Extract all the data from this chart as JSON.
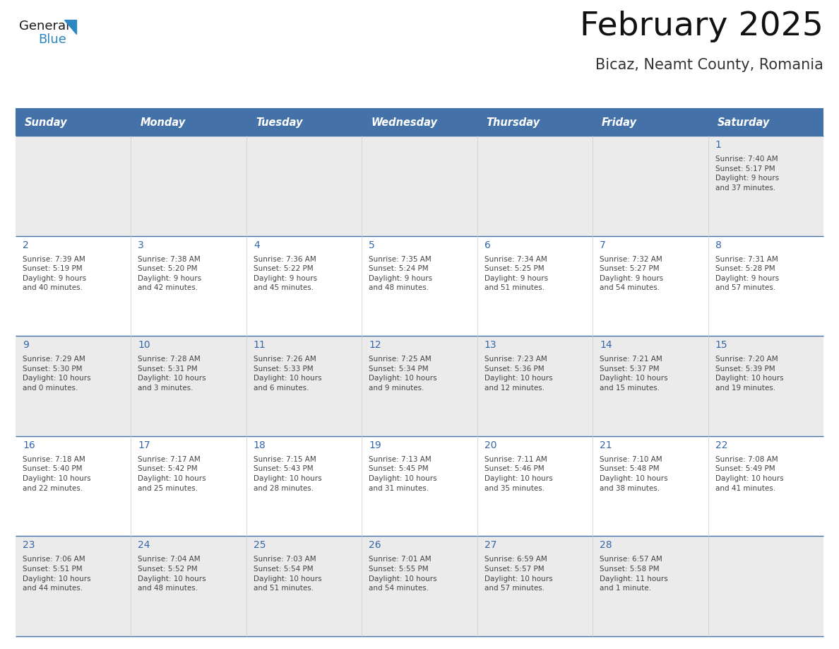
{
  "title": "February 2025",
  "subtitle": "Bicaz, Neamt County, Romania",
  "days_of_week": [
    "Sunday",
    "Monday",
    "Tuesday",
    "Wednesday",
    "Thursday",
    "Friday",
    "Saturday"
  ],
  "header_bg_color": "#4472a8",
  "header_text_color": "#ffffff",
  "cell_bg_even": "#ebebeb",
  "cell_bg_odd": "#ffffff",
  "day_number_color": "#3366aa",
  "info_text_color": "#444444",
  "border_color": "#4472a8",
  "title_color": "#111111",
  "subtitle_color": "#333333",
  "logo_text1_color": "#1a1a1a",
  "logo_blue_color": "#2e86c1",
  "weeks": [
    [
      {
        "day": null,
        "info": ""
      },
      {
        "day": null,
        "info": ""
      },
      {
        "day": null,
        "info": ""
      },
      {
        "day": null,
        "info": ""
      },
      {
        "day": null,
        "info": ""
      },
      {
        "day": null,
        "info": ""
      },
      {
        "day": 1,
        "info": "Sunrise: 7:40 AM\nSunset: 5:17 PM\nDaylight: 9 hours\nand 37 minutes."
      }
    ],
    [
      {
        "day": 2,
        "info": "Sunrise: 7:39 AM\nSunset: 5:19 PM\nDaylight: 9 hours\nand 40 minutes."
      },
      {
        "day": 3,
        "info": "Sunrise: 7:38 AM\nSunset: 5:20 PM\nDaylight: 9 hours\nand 42 minutes."
      },
      {
        "day": 4,
        "info": "Sunrise: 7:36 AM\nSunset: 5:22 PM\nDaylight: 9 hours\nand 45 minutes."
      },
      {
        "day": 5,
        "info": "Sunrise: 7:35 AM\nSunset: 5:24 PM\nDaylight: 9 hours\nand 48 minutes."
      },
      {
        "day": 6,
        "info": "Sunrise: 7:34 AM\nSunset: 5:25 PM\nDaylight: 9 hours\nand 51 minutes."
      },
      {
        "day": 7,
        "info": "Sunrise: 7:32 AM\nSunset: 5:27 PM\nDaylight: 9 hours\nand 54 minutes."
      },
      {
        "day": 8,
        "info": "Sunrise: 7:31 AM\nSunset: 5:28 PM\nDaylight: 9 hours\nand 57 minutes."
      }
    ],
    [
      {
        "day": 9,
        "info": "Sunrise: 7:29 AM\nSunset: 5:30 PM\nDaylight: 10 hours\nand 0 minutes."
      },
      {
        "day": 10,
        "info": "Sunrise: 7:28 AM\nSunset: 5:31 PM\nDaylight: 10 hours\nand 3 minutes."
      },
      {
        "day": 11,
        "info": "Sunrise: 7:26 AM\nSunset: 5:33 PM\nDaylight: 10 hours\nand 6 minutes."
      },
      {
        "day": 12,
        "info": "Sunrise: 7:25 AM\nSunset: 5:34 PM\nDaylight: 10 hours\nand 9 minutes."
      },
      {
        "day": 13,
        "info": "Sunrise: 7:23 AM\nSunset: 5:36 PM\nDaylight: 10 hours\nand 12 minutes."
      },
      {
        "day": 14,
        "info": "Sunrise: 7:21 AM\nSunset: 5:37 PM\nDaylight: 10 hours\nand 15 minutes."
      },
      {
        "day": 15,
        "info": "Sunrise: 7:20 AM\nSunset: 5:39 PM\nDaylight: 10 hours\nand 19 minutes."
      }
    ],
    [
      {
        "day": 16,
        "info": "Sunrise: 7:18 AM\nSunset: 5:40 PM\nDaylight: 10 hours\nand 22 minutes."
      },
      {
        "day": 17,
        "info": "Sunrise: 7:17 AM\nSunset: 5:42 PM\nDaylight: 10 hours\nand 25 minutes."
      },
      {
        "day": 18,
        "info": "Sunrise: 7:15 AM\nSunset: 5:43 PM\nDaylight: 10 hours\nand 28 minutes."
      },
      {
        "day": 19,
        "info": "Sunrise: 7:13 AM\nSunset: 5:45 PM\nDaylight: 10 hours\nand 31 minutes."
      },
      {
        "day": 20,
        "info": "Sunrise: 7:11 AM\nSunset: 5:46 PM\nDaylight: 10 hours\nand 35 minutes."
      },
      {
        "day": 21,
        "info": "Sunrise: 7:10 AM\nSunset: 5:48 PM\nDaylight: 10 hours\nand 38 minutes."
      },
      {
        "day": 22,
        "info": "Sunrise: 7:08 AM\nSunset: 5:49 PM\nDaylight: 10 hours\nand 41 minutes."
      }
    ],
    [
      {
        "day": 23,
        "info": "Sunrise: 7:06 AM\nSunset: 5:51 PM\nDaylight: 10 hours\nand 44 minutes."
      },
      {
        "day": 24,
        "info": "Sunrise: 7:04 AM\nSunset: 5:52 PM\nDaylight: 10 hours\nand 48 minutes."
      },
      {
        "day": 25,
        "info": "Sunrise: 7:03 AM\nSunset: 5:54 PM\nDaylight: 10 hours\nand 51 minutes."
      },
      {
        "day": 26,
        "info": "Sunrise: 7:01 AM\nSunset: 5:55 PM\nDaylight: 10 hours\nand 54 minutes."
      },
      {
        "day": 27,
        "info": "Sunrise: 6:59 AM\nSunset: 5:57 PM\nDaylight: 10 hours\nand 57 minutes."
      },
      {
        "day": 28,
        "info": "Sunrise: 6:57 AM\nSunset: 5:58 PM\nDaylight: 11 hours\nand 1 minute."
      },
      {
        "day": null,
        "info": ""
      }
    ]
  ]
}
